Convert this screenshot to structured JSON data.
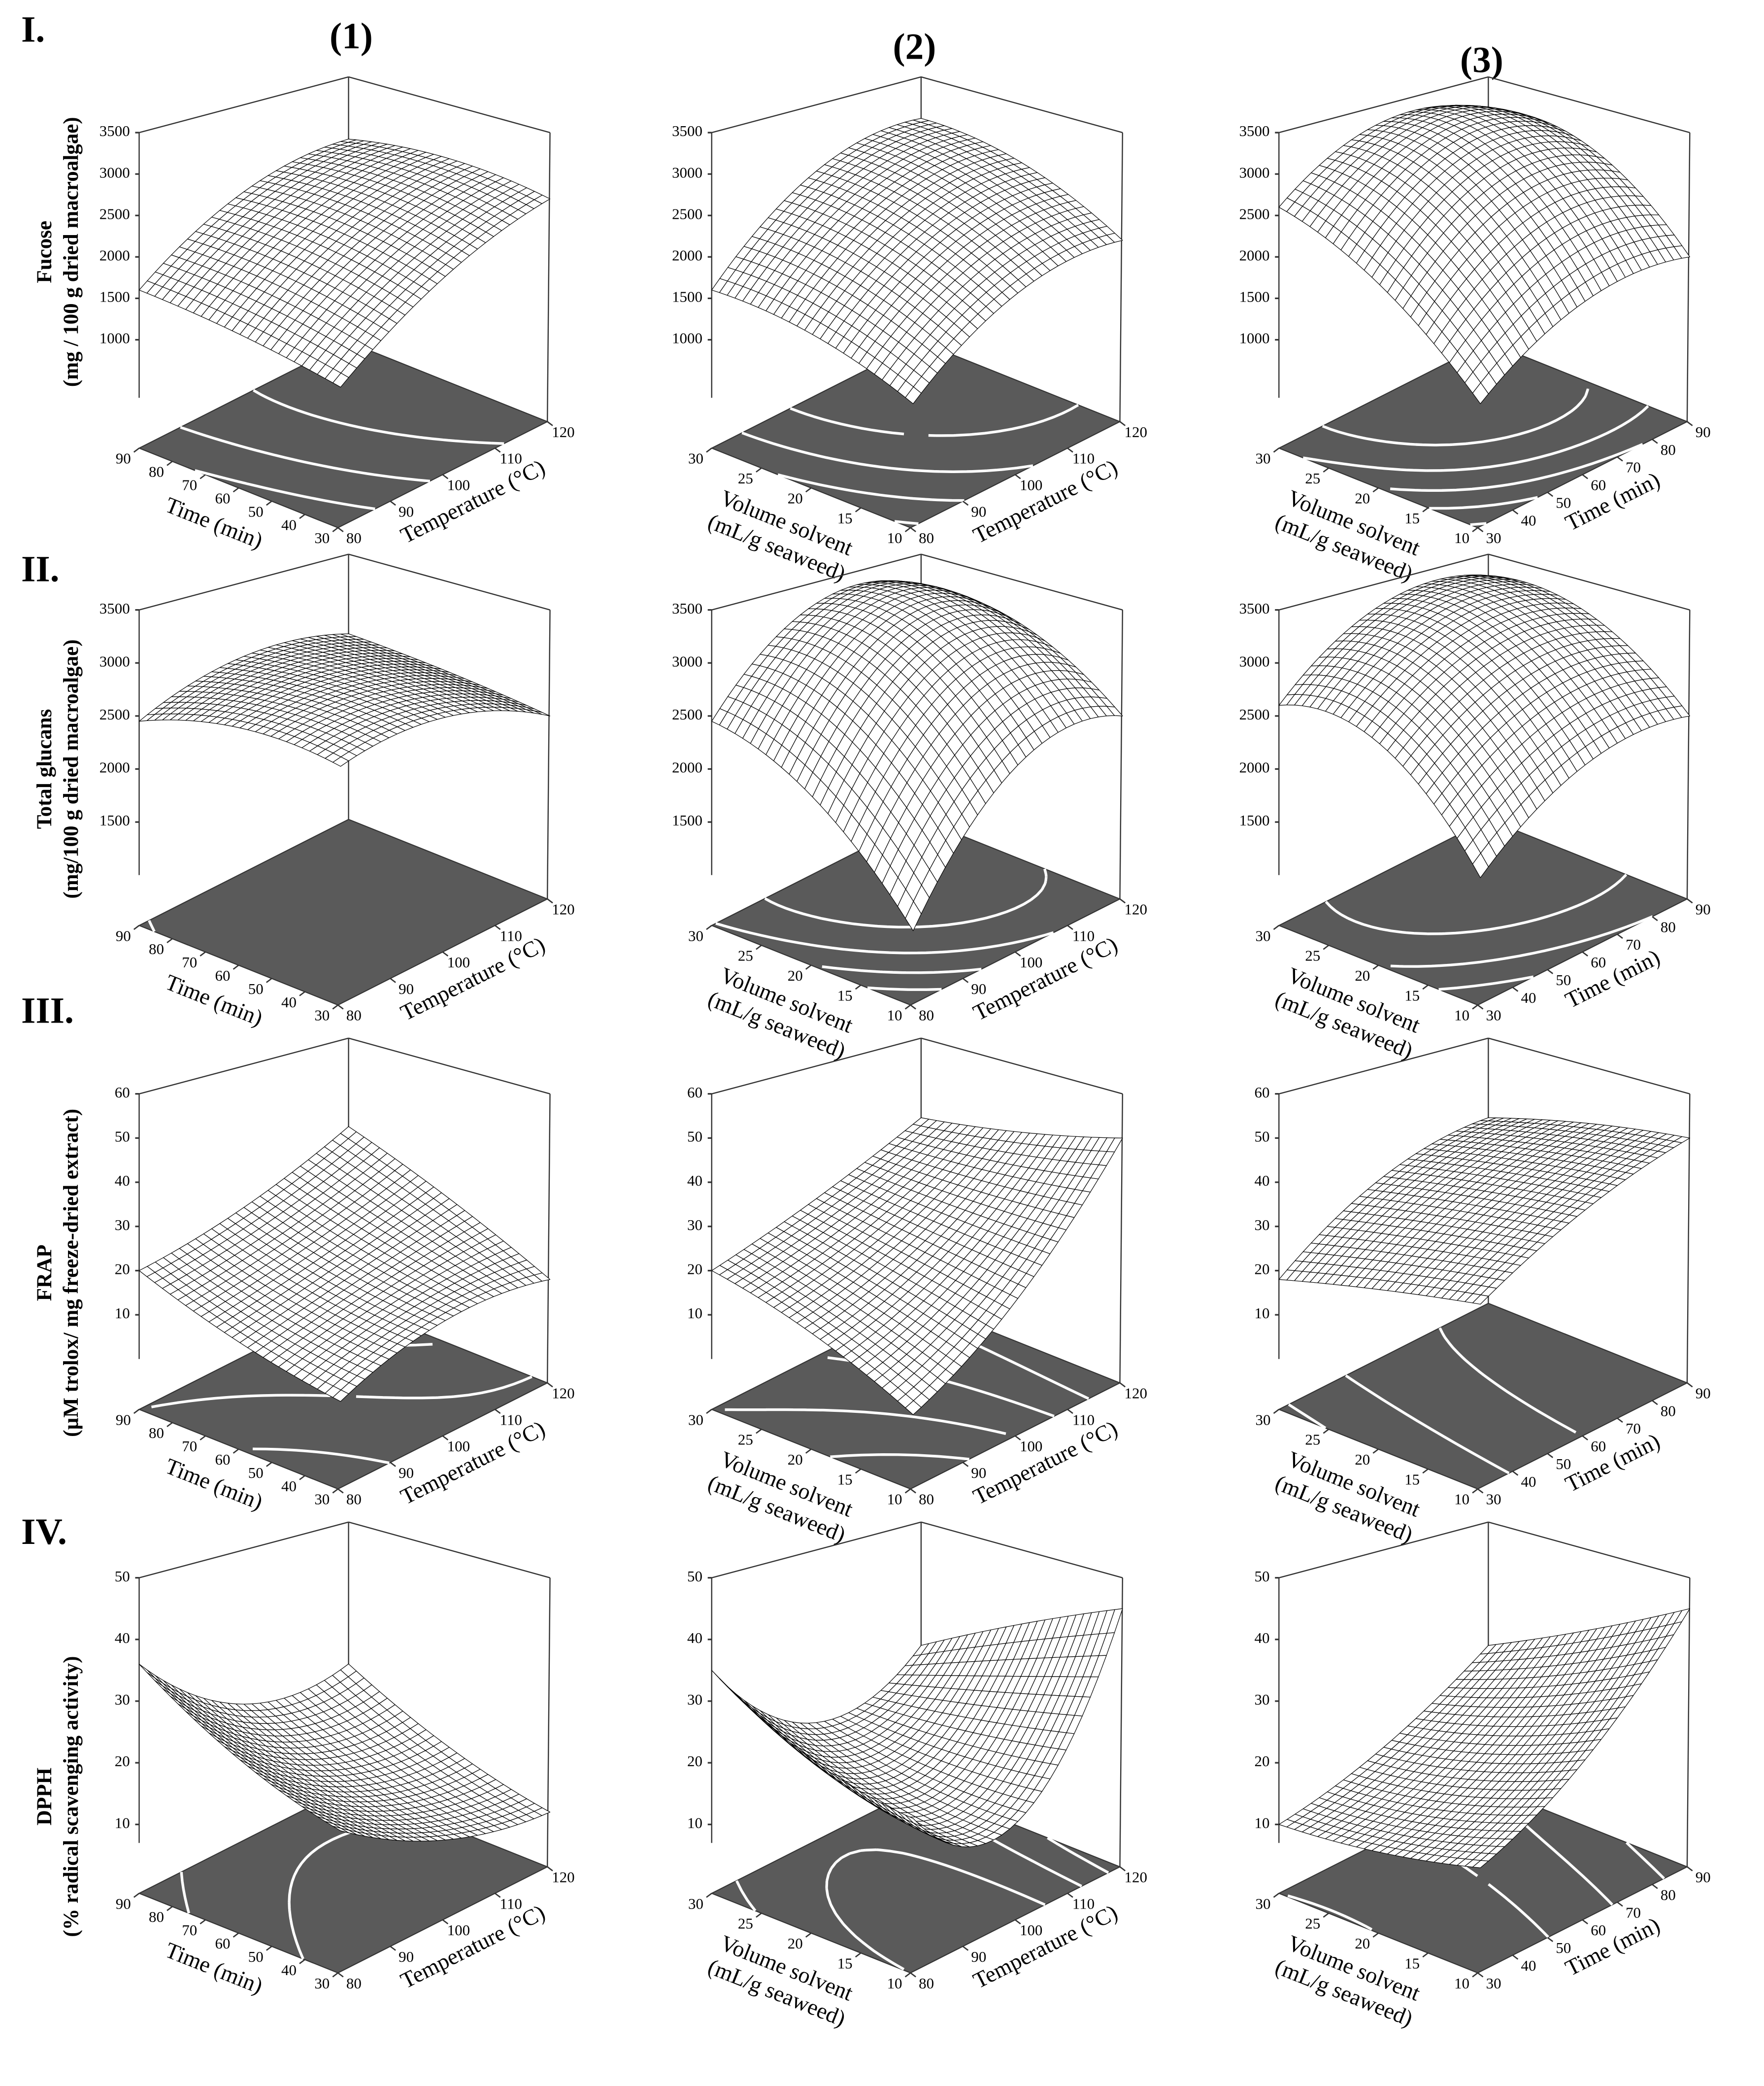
{
  "labels": {
    "rows": [
      "I.",
      "II.",
      "III.",
      "IV."
    ],
    "columns": [
      "(1)",
      "(2)",
      "(3)"
    ]
  },
  "style": {
    "surface": "#ffffff",
    "mesh": "#000000",
    "floor": "#5a5a5a",
    "contour": "#ffffff",
    "axis": "#333333"
  },
  "chart_data": [
    {
      "type": "surface",
      "z_label": [
        "Fucose",
        "(mg / 100 g dried macroalgae)"
      ],
      "zlim": [
        300,
        3500
      ],
      "zticks": [
        1000,
        1500,
        2000,
        2500,
        3000,
        3500
      ],
      "x_label": [
        "Temperature (°C)"
      ],
      "x": [
        80,
        100,
        120
      ],
      "xlim": [
        80,
        120
      ],
      "xticks": [
        80,
        90,
        100,
        110,
        120
      ],
      "y_label": [
        "Time (min)"
      ],
      "y": [
        30,
        60,
        90
      ],
      "ylim": [
        30,
        90
      ],
      "yticks": [
        30,
        40,
        50,
        60,
        70,
        80,
        90
      ],
      "z": [
        [
          1100,
          2100,
          2700
        ],
        [
          1400,
          2400,
          2850
        ],
        [
          1600,
          2450,
          2750
        ]
      ]
    },
    {
      "type": "surface",
      "zlim": [
        300,
        3500
      ],
      "zticks": [
        1000,
        1500,
        2000,
        2500,
        3000,
        3500
      ],
      "x_label": [
        "Temperature (°C)"
      ],
      "x": [
        80,
        100,
        120
      ],
      "xlim": [
        80,
        120
      ],
      "xticks": [
        80,
        90,
        100,
        110,
        120
      ],
      "y_label": [
        "Volume solvent",
        "(mL/g seaweed)"
      ],
      "y": [
        10,
        20,
        30
      ],
      "ylim": [
        10,
        30
      ],
      "yticks": [
        10,
        15,
        20,
        25,
        30
      ],
      "z": [
        [
          900,
          1900,
          2200
        ],
        [
          1400,
          2500,
          2800
        ],
        [
          1600,
          2700,
          3000
        ]
      ]
    },
    {
      "type": "surface",
      "zlim": [
        300,
        3500
      ],
      "zticks": [
        1000,
        1500,
        2000,
        2500,
        3000,
        3500
      ],
      "x_label": [
        "Time (min)"
      ],
      "x": [
        30,
        60,
        90
      ],
      "xlim": [
        30,
        90
      ],
      "xticks": [
        30,
        40,
        50,
        60,
        70,
        80,
        90
      ],
      "y_label": [
        "Volume solvent",
        "(mL/g seaweed)"
      ],
      "y": [
        10,
        20,
        30
      ],
      "ylim": [
        10,
        30
      ],
      "yticks": [
        10,
        15,
        20,
        25,
        30
      ],
      "z": [
        [
          900,
          1800,
          2000
        ],
        [
          2000,
          3100,
          3000
        ],
        [
          2600,
          3300,
          3100
        ]
      ]
    },
    {
      "type": "surface",
      "z_label": [
        "Total glucans",
        "(mg/100 g dried macroalgae)"
      ],
      "zlim": [
        1000,
        3500
      ],
      "zticks": [
        1500,
        2000,
        2500,
        3000,
        3500
      ],
      "x_label": [
        "Temperature (°C)"
      ],
      "x": [
        80,
        100,
        120
      ],
      "xlim": [
        80,
        120
      ],
      "xticks": [
        80,
        90,
        100,
        110,
        120
      ],
      "y_label": [
        "Time (min)"
      ],
      "y": [
        30,
        60,
        90
      ],
      "ylim": [
        30,
        90
      ],
      "yticks": [
        30,
        40,
        50,
        60,
        70,
        80,
        90
      ],
      "z": [
        [
          2550,
          2750,
          2500
        ],
        [
          2650,
          2850,
          2650
        ],
        [
          2450,
          2800,
          2750
        ]
      ]
    },
    {
      "type": "surface",
      "zlim": [
        1000,
        3500
      ],
      "zticks": [
        1500,
        2000,
        2500,
        3000,
        3500
      ],
      "x_label": [
        "Temperature (°C)"
      ],
      "x": [
        80,
        100,
        120
      ],
      "xlim": [
        80,
        120
      ],
      "xticks": [
        80,
        90,
        100,
        110,
        120
      ],
      "y_label": [
        "Volume solvent",
        "(mL/g seaweed)"
      ],
      "y": [
        10,
        20,
        30
      ],
      "ylim": [
        10,
        30
      ],
      "yticks": [
        10,
        15,
        20,
        25,
        30
      ],
      "z": [
        [
          1000,
          2300,
          2500
        ],
        [
          2000,
          3200,
          3100
        ],
        [
          2450,
          3300,
          3200
        ]
      ]
    },
    {
      "type": "surface",
      "zlim": [
        1000,
        3500
      ],
      "zticks": [
        1500,
        2000,
        2500,
        3000,
        3500
      ],
      "x_label": [
        "Time (min)"
      ],
      "x": [
        30,
        60,
        90
      ],
      "xlim": [
        30,
        90
      ],
      "xticks": [
        30,
        40,
        50,
        60,
        70,
        80,
        90
      ],
      "y_label": [
        "Volume solvent",
        "(mL/g seaweed)"
      ],
      "y": [
        10,
        20,
        30
      ],
      "ylim": [
        10,
        30
      ],
      "yticks": [
        10,
        15,
        20,
        25,
        30
      ],
      "z": [
        [
          1500,
          2300,
          2500
        ],
        [
          2500,
          3200,
          3200
        ],
        [
          2600,
          3300,
          3300
        ]
      ]
    },
    {
      "type": "surface",
      "z_label": [
        "FRAP",
        "(µM trolox/ mg freeze-dried extract)"
      ],
      "zlim": [
        0,
        60
      ],
      "zticks": [
        10,
        20,
        30,
        40,
        50,
        60
      ],
      "x_label": [
        "Temperature (°C)"
      ],
      "x": [
        80,
        100,
        120
      ],
      "xlim": [
        80,
        120
      ],
      "xticks": [
        80,
        90,
        100,
        110,
        120
      ],
      "y_label": [
        "Time (min)"
      ],
      "y": [
        30,
        60,
        90
      ],
      "ylim": [
        30,
        90
      ],
      "yticks": [
        30,
        40,
        50,
        60,
        70,
        80,
        90
      ],
      "z": [
        [
          3,
          15,
          18
        ],
        [
          10,
          20,
          30
        ],
        [
          20,
          28,
          40
        ]
      ]
    },
    {
      "type": "surface",
      "zlim": [
        0,
        60
      ],
      "zticks": [
        10,
        20,
        30,
        40,
        50,
        60
      ],
      "x_label": [
        "Temperature (°C)"
      ],
      "x": [
        80,
        100,
        120
      ],
      "xlim": [
        80,
        120
      ],
      "xticks": [
        80,
        90,
        100,
        110,
        120
      ],
      "y_label": [
        "Volume solvent",
        "(mL/g seaweed)"
      ],
      "y": [
        10,
        20,
        30
      ],
      "ylim": [
        10,
        30
      ],
      "yticks": [
        10,
        15,
        20,
        25,
        30
      ],
      "z": [
        [
          0,
          20,
          50
        ],
        [
          12,
          25,
          45
        ],
        [
          20,
          30,
          42
        ]
      ]
    },
    {
      "type": "surface",
      "zlim": [
        0,
        60
      ],
      "zticks": [
        10,
        20,
        30,
        40,
        50,
        60
      ],
      "x_label": [
        "Time (min)"
      ],
      "x": [
        30,
        60,
        90
      ],
      "xlim": [
        30,
        90
      ],
      "xticks": [
        30,
        40,
        50,
        60,
        70,
        80,
        90
      ],
      "y_label": [
        "Volume solvent",
        "(mL/g seaweed)"
      ],
      "y": [
        10,
        20,
        30
      ],
      "ylim": [
        10,
        30
      ],
      "yticks": [
        10,
        15,
        20,
        25,
        30
      ],
      "z": [
        [
          25,
          40,
          50
        ],
        [
          22,
          38,
          47
        ],
        [
          18,
          35,
          42
        ]
      ]
    },
    {
      "type": "surface",
      "z_label": [
        "DPPH",
        "(% radical scavenging activity)"
      ],
      "zlim": [
        7,
        50
      ],
      "zticks": [
        10,
        20,
        30,
        40,
        50
      ],
      "x_label": [
        "Temperature (°C)"
      ],
      "x": [
        80,
        100,
        120
      ],
      "xlim": [
        80,
        120
      ],
      "xticks": [
        80,
        90,
        100,
        110,
        120
      ],
      "y_label": [
        "Time (min)"
      ],
      "y": [
        30,
        60,
        90
      ],
      "ylim": [
        30,
        90
      ],
      "yticks": [
        30,
        40,
        50,
        60,
        70,
        80,
        90
      ],
      "z": [
        [
          18,
          12,
          12
        ],
        [
          25,
          17,
          18
        ],
        [
          36,
          25,
          27
        ]
      ]
    },
    {
      "type": "surface",
      "zlim": [
        7,
        50
      ],
      "zticks": [
        10,
        20,
        30,
        40,
        50
      ],
      "x_label": [
        "Temperature (°C)"
      ],
      "x": [
        80,
        100,
        120
      ],
      "xlim": [
        80,
        120
      ],
      "xticks": [
        80,
        90,
        100,
        110,
        120
      ],
      "y_label": [
        "Volume solvent",
        "(mL/g seaweed)"
      ],
      "y": [
        10,
        20,
        30
      ],
      "ylim": [
        10,
        30
      ],
      "yticks": [
        10,
        15,
        20,
        25,
        30
      ],
      "z": [
        [
          20,
          15,
          45
        ],
        [
          25,
          17,
          38
        ],
        [
          35,
          22,
          30
        ]
      ]
    },
    {
      "type": "surface",
      "zlim": [
        7,
        50
      ],
      "zticks": [
        10,
        20,
        30,
        40,
        50
      ],
      "x_label": [
        "Time (min)"
      ],
      "x": [
        30,
        60,
        90
      ],
      "xlim": [
        30,
        90
      ],
      "xticks": [
        30,
        40,
        50,
        60,
        70,
        80,
        90
      ],
      "y_label": [
        "Volume solvent",
        "(mL/g seaweed)"
      ],
      "y": [
        10,
        20,
        30
      ],
      "ylim": [
        10,
        30
      ],
      "yticks": [
        10,
        15,
        20,
        25,
        30
      ],
      "z": [
        [
          12,
          25,
          45
        ],
        [
          10,
          20,
          37
        ],
        [
          10,
          18,
          30
        ]
      ]
    }
  ]
}
